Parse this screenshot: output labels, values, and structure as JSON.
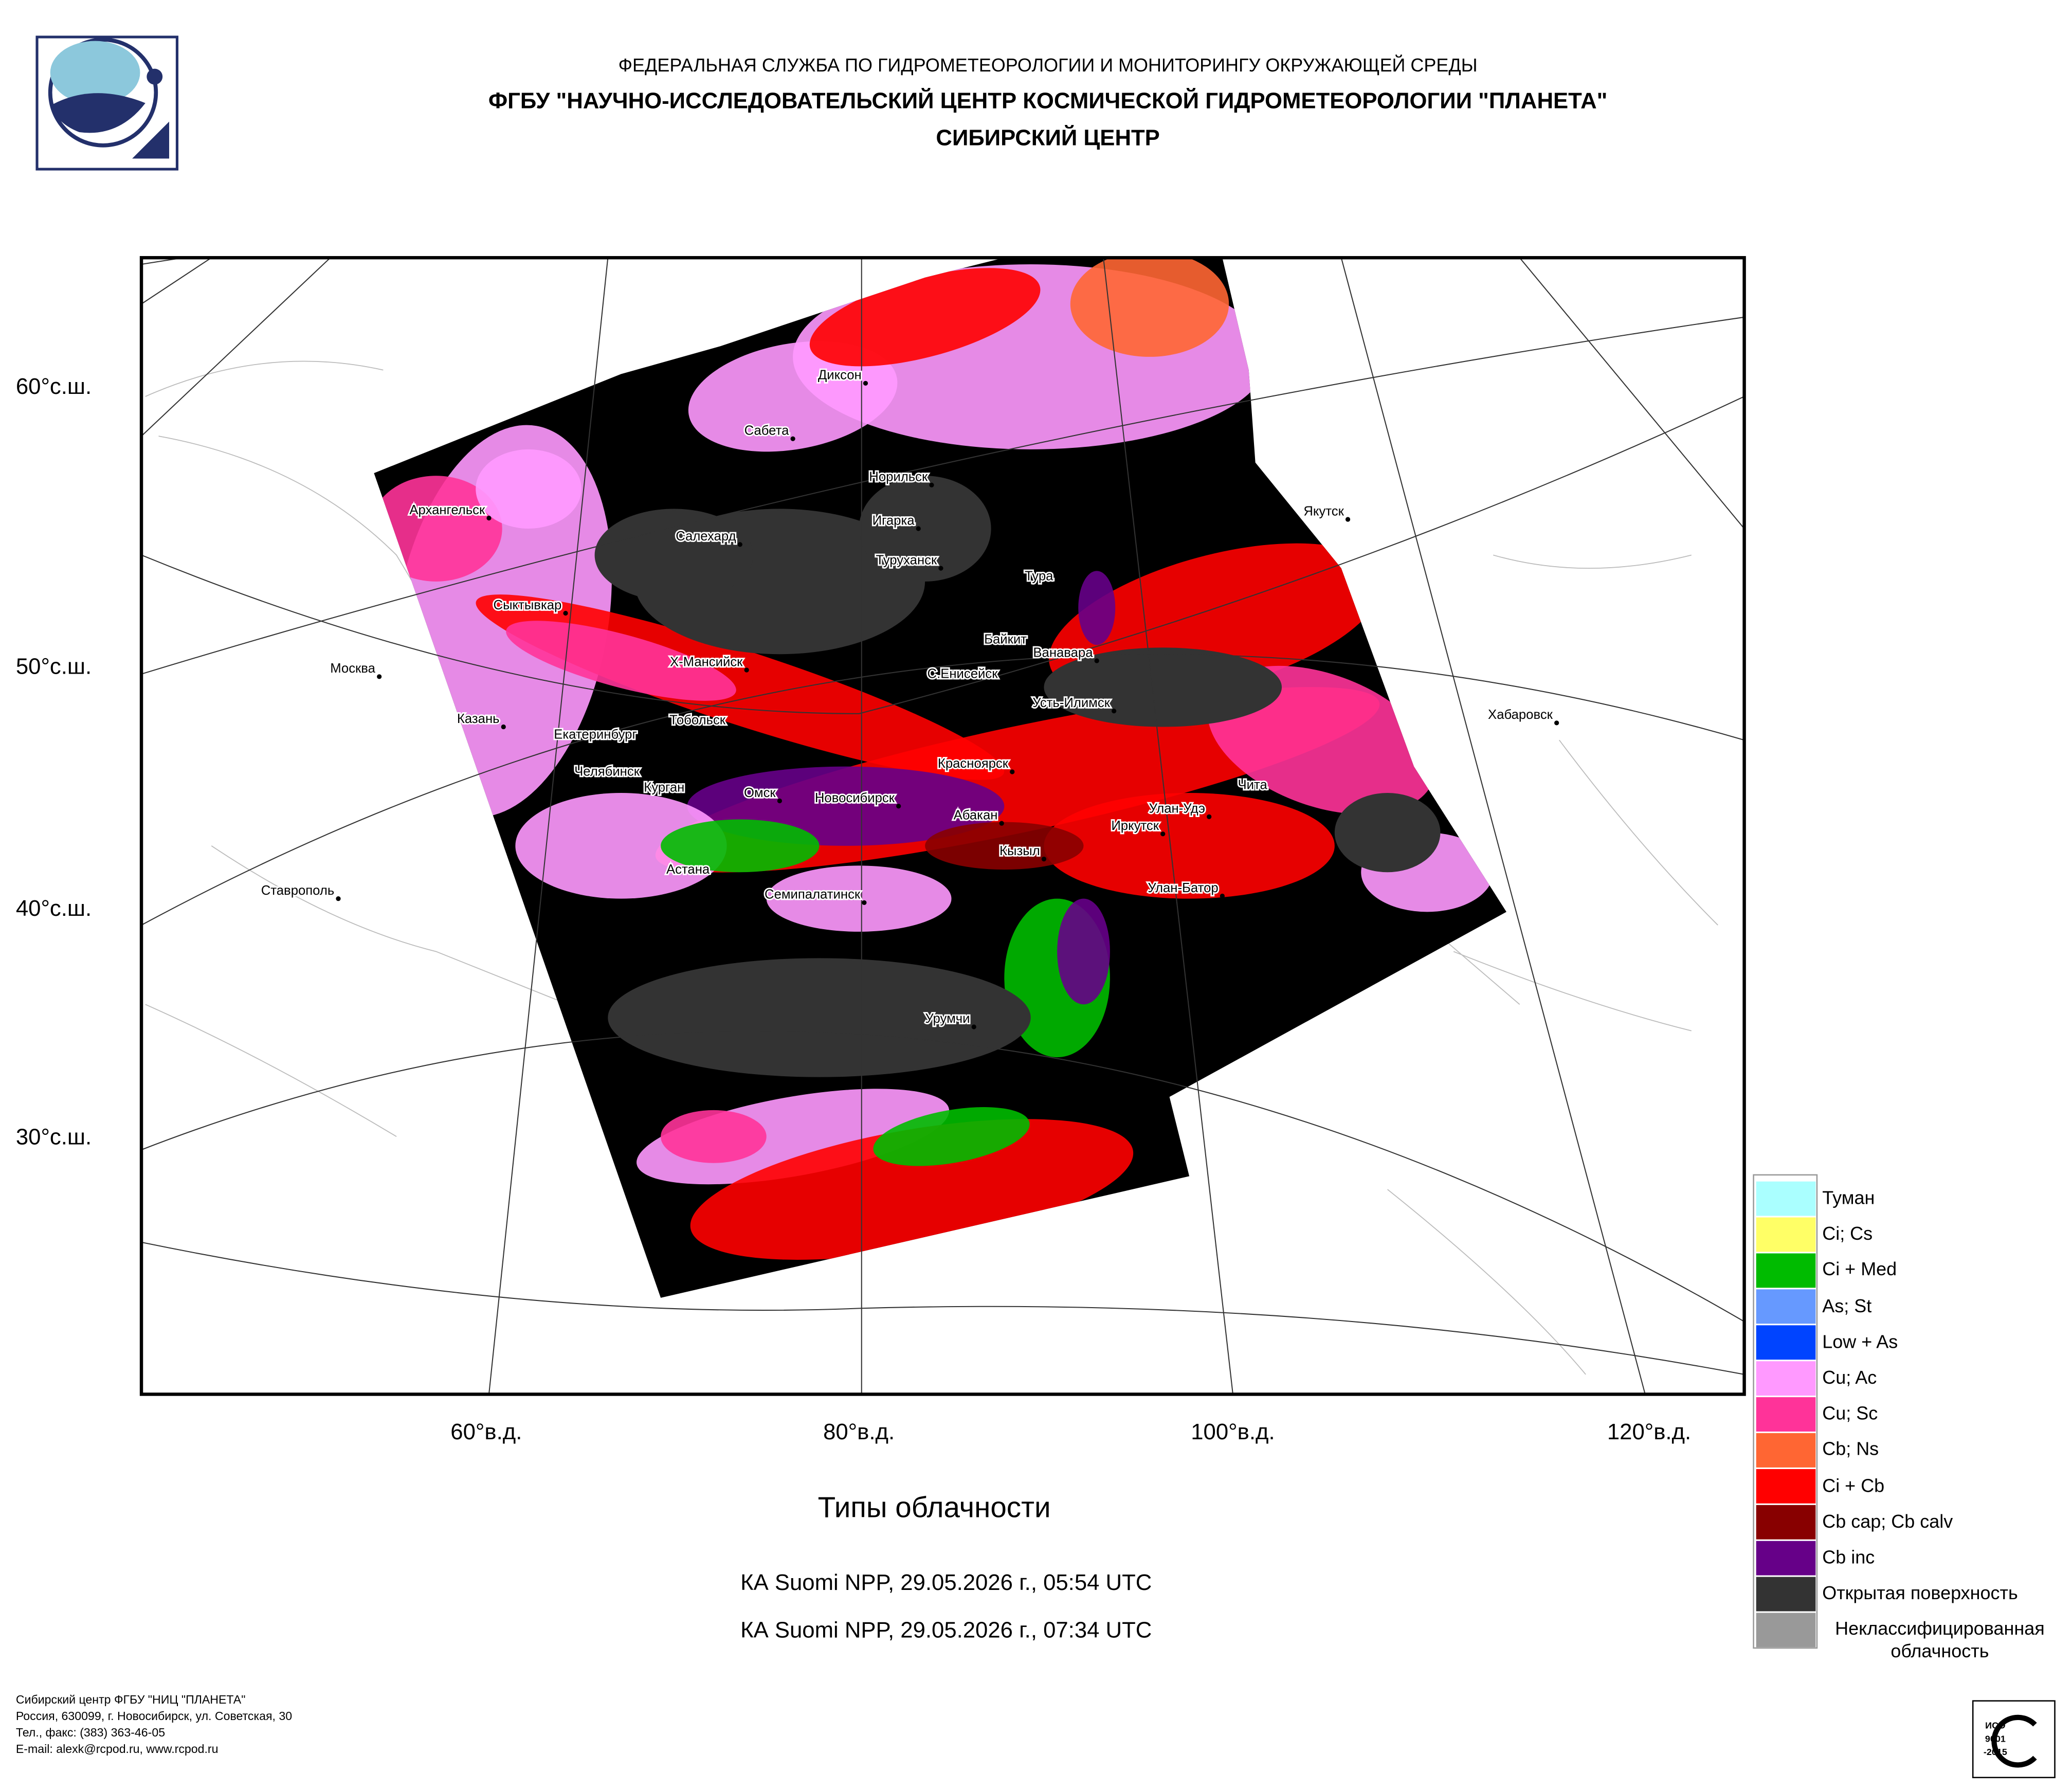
{
  "header": {
    "line1": "ФЕДЕРАЛЬНАЯ СЛУЖБА ПО ГИДРОМЕТЕОРОЛОГИИ И МОНИТОРИНГУ ОКРУЖАЮЩЕЙ СРЕДЫ",
    "line2": "ФГБУ \"НАУЧНО-ИССЛЕДОВАТЕЛЬСКИЙ ЦЕНТР КОСМИЧЕСКОЙ ГИДРОМЕТЕОРОЛОГИИ \"ПЛАНЕТА\"",
    "line3": "СИБИРСКИЙ ЦЕНТР"
  },
  "map": {
    "lat_labels": [
      "60°с.ш.",
      "50°с.ш.",
      "40°с.ш.",
      "30°с.ш."
    ],
    "lon_labels": [
      "60°в.д.",
      "80°в.д.",
      "100°в.д.",
      "120°в.д."
    ],
    "cities": [
      "Диксон",
      "Сабета",
      "Норильск",
      "Архангельск",
      "Игарка",
      "Салехард",
      "Якутск",
      "Туруханск",
      "Тура",
      "Сыктывкар",
      "Байкит",
      "Ванавара",
      "Х-Мансийск",
      "Москва",
      "С.Енисейск",
      "Усть-Илимск",
      "Хабаровск",
      "Казань",
      "Тобольск",
      "Екатеринбург",
      "Красноярск",
      "Челябинск",
      "Чита",
      "Курган",
      "Омск",
      "Новосибирск",
      "Улан-Удэ",
      "Абакан",
      "Иркутск",
      "Кызыл",
      "Астана",
      "Ставрополь",
      "Семипалатинск",
      "Улан-Батор",
      "Урумчи"
    ]
  },
  "title": "Типы облачности",
  "passes": [
    "КА Suomi NPP, 29.05.2026 г., 05:54 UTC",
    "КА Suomi NPP, 29.05.2026 г., 07:34 UTC"
  ],
  "legend": [
    {
      "label": "Туман",
      "color": "#aaffff"
    },
    {
      "label": "Ci; Cs",
      "color": "#ffff66"
    },
    {
      "label": "Ci + Med",
      "color": "#00bb00"
    },
    {
      "label": "As; St",
      "color": "#6699ff"
    },
    {
      "label": "Low + As",
      "color": "#0044ff"
    },
    {
      "label": "Cu; Ac",
      "color": "#ff99ff"
    },
    {
      "label": "Cu; Sc",
      "color": "#ff3399"
    },
    {
      "label": "Cb; Ns",
      "color": "#ff6633"
    },
    {
      "label": "Ci + Cb",
      "color": "#ff0000"
    },
    {
      "label": "Cb cap; Cb calv",
      "color": "#880000"
    },
    {
      "label": "Cb inc",
      "color": "#660088"
    },
    {
      "label": "Открытая поверхность",
      "color": "#333333"
    },
    {
      "label": "Неклассифицированная облачность",
      "color": "#999999"
    }
  ],
  "footer": [
    "Сибирский центр ФГБУ \"НИЦ \"ПЛАНЕТА\"",
    "Россия, 630099, г. Новосибирск, ул. Советская, 30",
    "Тел., факс: (383) 363-46-05",
    "E-mail: alexk@rcpod.ru, www.rcpod.ru"
  ],
  "iso": [
    "ИСО",
    "9001",
    "-2015"
  ]
}
